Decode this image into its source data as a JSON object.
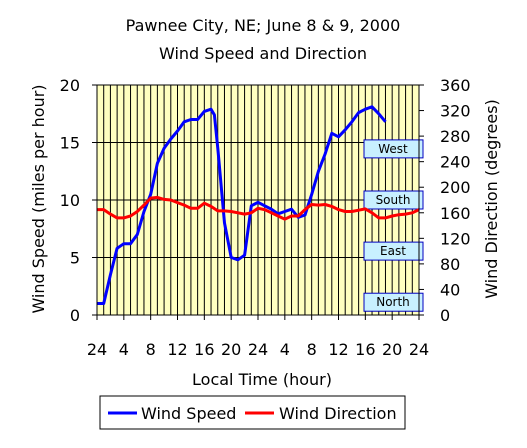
{
  "chart_data": {
    "type": "line",
    "title": "Pawnee City, NE; June 8 & 9, 2000",
    "subtitle": "Wind Speed and Direction",
    "xlabel": "Local Time (hour)",
    "ylabel": "Wind Speed (miles per hour)",
    "y2label": "Wind Direction (degrees)",
    "ylim": [
      0,
      20
    ],
    "y2lim": [
      0,
      360
    ],
    "grid": true,
    "legend_position": "bottom",
    "x_tick_labels": [
      "24",
      "4",
      "8",
      "12",
      "16",
      "20",
      "24",
      "4",
      "8",
      "12",
      "16",
      "20",
      "24"
    ],
    "y_tick_labels": [
      "0",
      "5",
      "10",
      "15",
      "20"
    ],
    "y2_tick_labels": [
      "0",
      "40",
      "80",
      "120",
      "160",
      "200",
      "240",
      "280",
      "320",
      "360"
    ],
    "direction_labels": [
      {
        "text": "North",
        "degrees": 20
      },
      {
        "text": "East",
        "degrees": 100
      },
      {
        "text": "South",
        "degrees": 180
      },
      {
        "text": "West",
        "degrees": 260
      }
    ],
    "series": [
      {
        "name": "Wind Speed",
        "axis": "left",
        "color": "#0000ff",
        "x": [
          0,
          1,
          2,
          3,
          4,
          5,
          6,
          7,
          8,
          9,
          10,
          11,
          12,
          13,
          14,
          15,
          16,
          17,
          17.5,
          18,
          19,
          20,
          21,
          22,
          23,
          24,
          25,
          26,
          27,
          28,
          29,
          30,
          31,
          32,
          33,
          34,
          35,
          36,
          37,
          38,
          39,
          40,
          41,
          42,
          43
        ],
        "values": [
          1,
          1,
          3.5,
          5.8,
          6.2,
          6.2,
          7,
          9,
          10.5,
          13.2,
          14.5,
          15.3,
          16,
          16.8,
          17,
          17,
          17.7,
          17.9,
          17.4,
          14.5,
          8,
          5,
          4.8,
          5.2,
          9.5,
          9.8,
          9.5,
          9.2,
          8.8,
          9,
          9.2,
          8.5,
          8.7,
          10.5,
          12.5,
          14,
          15.8,
          15.5,
          16.1,
          16.8,
          17.6,
          17.9,
          18.1,
          17.5,
          16.8
        ]
      },
      {
        "name": "Wind Direction",
        "axis": "right",
        "color": "#ff0000",
        "x": [
          0,
          1,
          2,
          3,
          4,
          5,
          6,
          7,
          8,
          9,
          10,
          11,
          12,
          13,
          14,
          15,
          16,
          17,
          18,
          19,
          20,
          21,
          22,
          23,
          24,
          25,
          26,
          27,
          28,
          29,
          30,
          31,
          32,
          33,
          34,
          35,
          36,
          37,
          38,
          39,
          40,
          41,
          42,
          43,
          44,
          45,
          46,
          47,
          48
        ],
        "values": [
          165,
          165,
          158,
          152,
          152,
          155,
          162,
          172,
          183,
          184,
          181,
          180,
          176,
          172,
          167,
          167,
          175,
          170,
          163,
          163,
          162,
          160,
          158,
          160,
          167,
          165,
          160,
          155,
          150,
          155,
          155,
          165,
          173,
          172,
          173,
          170,
          165,
          162,
          162,
          164,
          166,
          160,
          152,
          152,
          155,
          157,
          158,
          160,
          165
        ]
      }
    ]
  }
}
